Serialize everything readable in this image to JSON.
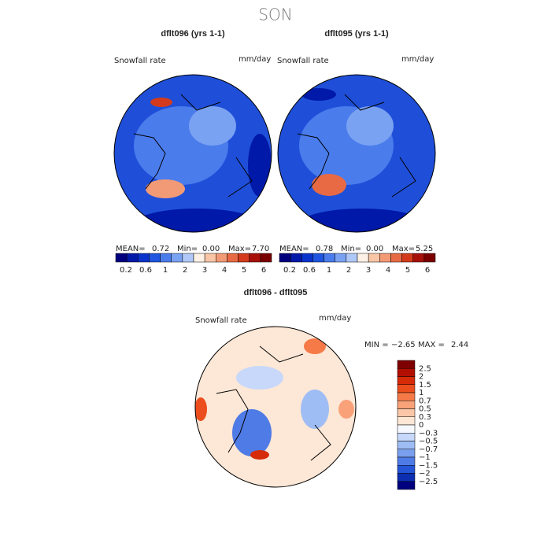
{
  "title": "SON",
  "panels": [
    {
      "title": "dflt096 (yrs 1-1)",
      "label": "Snowfall rate",
      "units": "mm/day",
      "stats": [
        "MEAN=",
        "0.72",
        "Min=",
        "0.00",
        "Max=",
        "7.70"
      ]
    },
    {
      "title": "dflt095 (yrs 1-1)",
      "label": "Snowfall rate",
      "units": "mm/day",
      "stats": [
        "MEAN=",
        "0.78",
        "Min=",
        "0.00",
        "Max=",
        "5.25"
      ]
    }
  ],
  "colorbar": {
    "labels": [
      "0.2",
      "0.6",
      "1",
      "2",
      "3",
      "4",
      "5",
      "6"
    ],
    "colors": [
      "#00007f",
      "#0019a8",
      "#0a33cc",
      "#1f55e0",
      "#4a7cec",
      "#7aa2f2",
      "#b0c8f7",
      "#fdf1e6",
      "#f8c5a6",
      "#f29a76",
      "#e86a44",
      "#d43b1c",
      "#a8100a",
      "#7a0000"
    ]
  },
  "difference": {
    "title": "dflt096 - dflt095",
    "label": "Snowfall rate",
    "units": "mm/day",
    "stats": [
      "MIN =",
      "−2.65",
      "MAX =",
      "2.44"
    ],
    "colorbar": {
      "labels": [
        "2.5",
        "2",
        "1.5",
        "1",
        "0.7",
        "0.5",
        "0.3",
        "0",
        "−0.3",
        "−0.5",
        "−0.7",
        "−1",
        "−1.5",
        "−2",
        "−2.5"
      ],
      "colors": [
        "#7f0000",
        "#b30f00",
        "#d62b08",
        "#ec4d1c",
        "#f57a48",
        "#f9a27a",
        "#fcc6a8",
        "#fde7d6",
        "#f5f8ff",
        "#c7d8fa",
        "#9fbdf5",
        "#7a9fee",
        "#4f7be6",
        "#2455d6",
        "#0b2fb0",
        "#00007f"
      ]
    }
  }
}
